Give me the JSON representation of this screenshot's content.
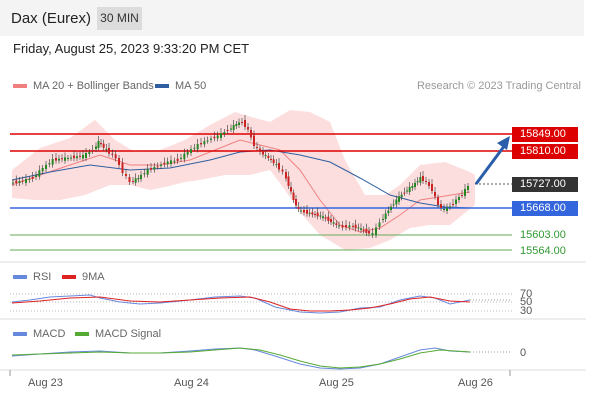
{
  "header": {
    "title": "Dax (Eurex)",
    "timeframe": "30 MIN"
  },
  "datetime": "Friday, August 25, 2023 9:33:20 PM CET",
  "legend": {
    "ma20": "MA 20 + Bollinger Bands",
    "ma50": "MA 50",
    "credit": "Research © 2023 Trading Central"
  },
  "levels": {
    "r2": "15849.00",
    "r1": "15810.00",
    "last": "15727.00",
    "s1": "15668.00",
    "s2": "15603.00",
    "s3": "15564.00"
  },
  "rsi": {
    "label": "RSI",
    "ma": "9MA",
    "t70": "70",
    "t50": "50",
    "t30": "30"
  },
  "macd": {
    "label": "MACD",
    "signal": "MACD Signal",
    "zero": "0"
  },
  "xaxis": [
    "Aug 23",
    "Aug 24",
    "Aug 25",
    "Aug 26"
  ],
  "colors": {
    "resistance": "#dd0000",
    "support": "#3366dd",
    "support_minor": "#66aa55",
    "candle_up": "#228822",
    "candle_down": "#cc2222",
    "band": "#fbd6d6",
    "ma50": "#2f5fa0",
    "rsi": "#6688dd",
    "rsi_ma": "#dd2222",
    "macd": "#6688dd",
    "macd_signal": "#55aa33",
    "arrow": "#2a5daa"
  },
  "chart_data": {
    "type": "candlestick",
    "instrument": "Dax (Eurex)",
    "timeframe": "30 MIN",
    "resistances": [
      15849.0,
      15810.0
    ],
    "supports": [
      15668.0,
      15603.0,
      15564.0
    ],
    "last": 15727.0,
    "x_labels": [
      "Aug 23",
      "Aug 24",
      "Aug 25",
      "Aug 26"
    ]
  }
}
